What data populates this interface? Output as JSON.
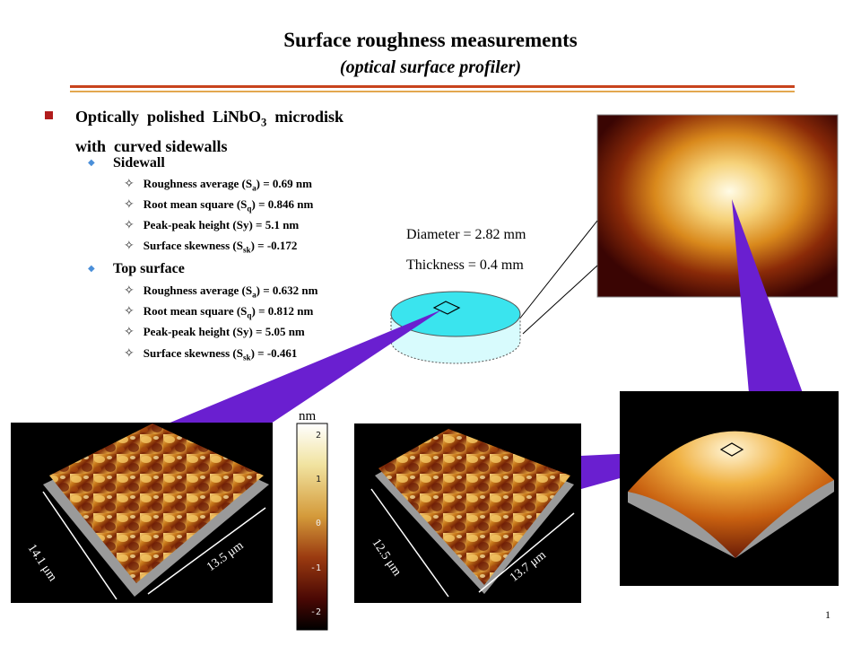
{
  "header": {
    "title": "Surface roughness measurements",
    "subtitle": "(optical surface profiler)"
  },
  "main_point": {
    "line1": "Optically  polished  LiNbO",
    "line1_sub": "3",
    "line1_end": "  microdisk",
    "line2": "with  curved sidewalls"
  },
  "sidewall": {
    "label": "Sidewall",
    "items": [
      {
        "pre": "Roughness average (S",
        "sub": "a",
        "post": ") = 0.69 nm"
      },
      {
        "pre": "Root mean square (S",
        "sub": "q",
        "post": ") = 0.846 nm"
      },
      {
        "pre": "Peak-peak height (Sy) = 5.1 nm",
        "sub": "",
        "post": ""
      },
      {
        "pre": "Surface skewness (S",
        "sub": "sk",
        "post": ") = -0.172"
      }
    ]
  },
  "top_surface": {
    "label": "Top surface",
    "items": [
      {
        "pre": "Roughness average (S",
        "sub": "a",
        "post": ") = 0.632 nm"
      },
      {
        "pre": "Root mean square (S",
        "sub": "q",
        "post": ") = 0.812 nm"
      },
      {
        "pre": "Peak-peak height (Sy) = 5.05 nm",
        "sub": "",
        "post": ""
      },
      {
        "pre": "Surface skewness (S",
        "sub": "sk",
        "post": ") = -0.461"
      }
    ]
  },
  "disk": {
    "diameter": "Diameter  = 2.82 mm",
    "thickness": "Thickness = 0.4 mm"
  },
  "scale": {
    "unit": "nm",
    "ticks": [
      "2",
      "1",
      "0",
      "-1",
      "-2"
    ]
  },
  "left_plot": {
    "dim1": "14.1 μm",
    "dim2": "13.5 μm"
  },
  "mid_plot": {
    "dim1": "12.5 μm",
    "dim2": "13.7 μm"
  },
  "page_number": "1",
  "colors": {
    "panel": "#4a0f86",
    "callout": "#6a1fd0",
    "rule_dark": "#c8431d",
    "rule_light": "#e3a84f",
    "bullet": "#b11c1c"
  }
}
